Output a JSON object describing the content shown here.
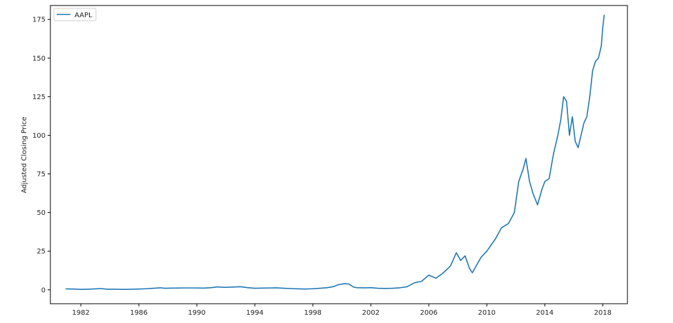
{
  "chart_data": {
    "type": "line",
    "title": "",
    "xlabel": "",
    "ylabel": "Adjusted Closing Price",
    "xlim": [
      1979.9,
      2019.7
    ],
    "ylim": [
      -9,
      184
    ],
    "x_ticks": [
      1982,
      1986,
      1990,
      1994,
      1998,
      2002,
      2006,
      2010,
      2014,
      2018
    ],
    "y_ticks": [
      0,
      25,
      50,
      75,
      100,
      125,
      150,
      175
    ],
    "grid": false,
    "legend_position": "top-left",
    "colors": {
      "line": "#1f77b4",
      "axes": "#000000"
    },
    "series": [
      {
        "name": "AAPL",
        "x": [
          1980.95,
          1981.5,
          1982.0,
          1982.5,
          1983.0,
          1983.4,
          1983.8,
          1984.3,
          1985.0,
          1985.6,
          1986.0,
          1986.5,
          1987.0,
          1987.5,
          1987.8,
          1988.3,
          1989.0,
          1989.8,
          1990.5,
          1991.0,
          1991.4,
          1991.9,
          1992.5,
          1993.0,
          1993.5,
          1994.0,
          1994.5,
          1995.0,
          1995.5,
          1996.0,
          1996.5,
          1997.0,
          1997.5,
          1998.0,
          1998.5,
          1999.0,
          1999.4,
          1999.8,
          2000.2,
          2000.5,
          2000.8,
          2001.0,
          2001.5,
          2002.0,
          2002.5,
          2003.0,
          2003.5,
          2004.0,
          2004.5,
          2005.0,
          2005.5,
          2006.0,
          2006.5,
          2007.0,
          2007.5,
          2007.9,
          2008.2,
          2008.5,
          2008.8,
          2009.0,
          2009.3,
          2009.6,
          2010.0,
          2010.3,
          2010.6,
          2011.0,
          2011.5,
          2011.9,
          2012.2,
          2012.5,
          2012.7,
          2012.95,
          2013.2,
          2013.5,
          2013.8,
          2014.0,
          2014.3,
          2014.6,
          2014.9,
          2015.1,
          2015.3,
          2015.5,
          2015.7,
          2015.9,
          2016.1,
          2016.3,
          2016.5,
          2016.7,
          2016.9,
          2017.1,
          2017.3,
          2017.5,
          2017.7,
          2017.9,
          2018.0,
          2018.1
        ],
        "values": [
          0.6,
          0.5,
          0.3,
          0.4,
          0.6,
          0.8,
          0.4,
          0.4,
          0.3,
          0.4,
          0.5,
          0.7,
          1.0,
          1.3,
          1.0,
          1.1,
          1.2,
          1.2,
          1.1,
          1.4,
          1.9,
          1.6,
          1.8,
          2.0,
          1.4,
          1.0,
          1.1,
          1.2,
          1.3,
          1.0,
          0.8,
          0.6,
          0.5,
          0.7,
          1.0,
          1.4,
          2.0,
          3.4,
          4.0,
          3.7,
          1.8,
          1.4,
          1.3,
          1.4,
          1.0,
          0.9,
          1.0,
          1.3,
          2.0,
          4.5,
          5.5,
          9.5,
          7.5,
          11.0,
          15.5,
          24.0,
          19.0,
          22.0,
          14.0,
          11.0,
          16.0,
          21.0,
          25.0,
          29.0,
          33.0,
          40.0,
          43.0,
          50.0,
          70.0,
          78.0,
          85.0,
          70.0,
          62.0,
          55.0,
          65.0,
          70.0,
          72.0,
          88.0,
          100.0,
          110.0,
          125.0,
          122.0,
          100.0,
          112.0,
          96.0,
          92.0,
          100.0,
          108.0,
          112.0,
          125.0,
          142.0,
          148.0,
          150.0,
          158.0,
          170.0,
          178.0
        ]
      }
    ]
  }
}
